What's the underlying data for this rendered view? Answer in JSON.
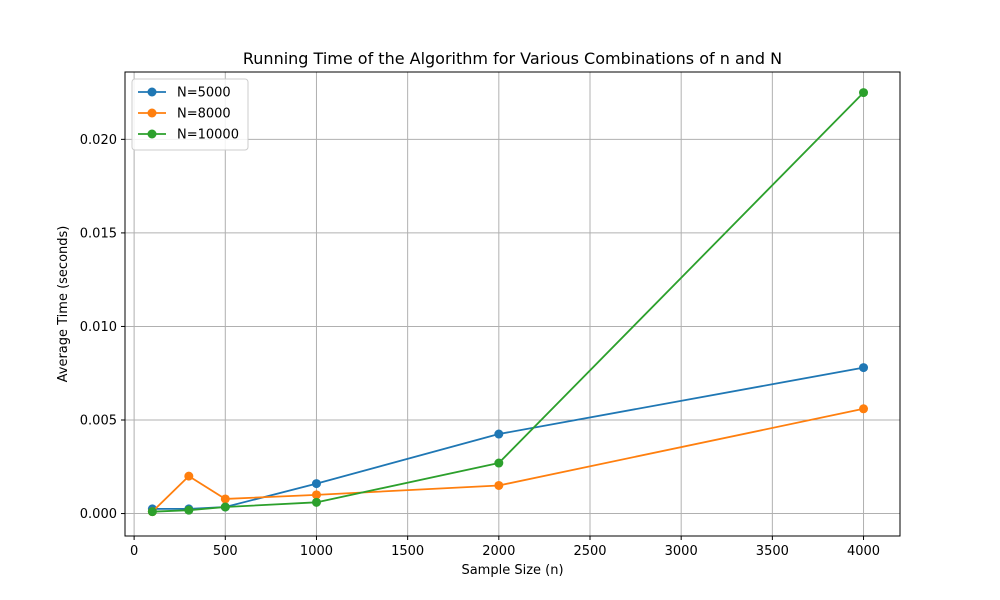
{
  "chart_data": {
    "type": "line",
    "title": "Running Time of the Algorithm for Various Combinations of n and N",
    "xlabel": "Sample Size (n)",
    "ylabel": "Average Time (seconds)",
    "xlim": [
      -50,
      4200
    ],
    "ylim": [
      -0.0012,
      0.0236
    ],
    "xticks": [
      0,
      500,
      1000,
      1500,
      2000,
      2500,
      3000,
      3500,
      4000
    ],
    "xtick_labels": [
      "0",
      "500",
      "1000",
      "1500",
      "2000",
      "2500",
      "3000",
      "3500",
      "4000"
    ],
    "yticks": [
      0.0,
      0.005,
      0.01,
      0.015,
      0.02
    ],
    "ytick_labels": [
      "0.000",
      "0.005",
      "0.010",
      "0.015",
      "0.020"
    ],
    "grid": true,
    "legend_position": "upper-left",
    "x": [
      100,
      300,
      500,
      1000,
      2000,
      4000
    ],
    "series": [
      {
        "name": "N=5000",
        "color": "#1f77b4",
        "values": [
          0.00025,
          0.00025,
          0.00035,
          0.0016,
          0.00425,
          0.0078
        ]
      },
      {
        "name": "N=8000",
        "color": "#ff7f0e",
        "values": [
          0.0001,
          0.002,
          0.00078,
          0.001,
          0.0015,
          0.0056
        ]
      },
      {
        "name": "N=10000",
        "color": "#2ca02c",
        "values": [
          0.0001,
          0.00018,
          0.00035,
          0.0006,
          0.0027,
          0.0225
        ]
      }
    ]
  }
}
